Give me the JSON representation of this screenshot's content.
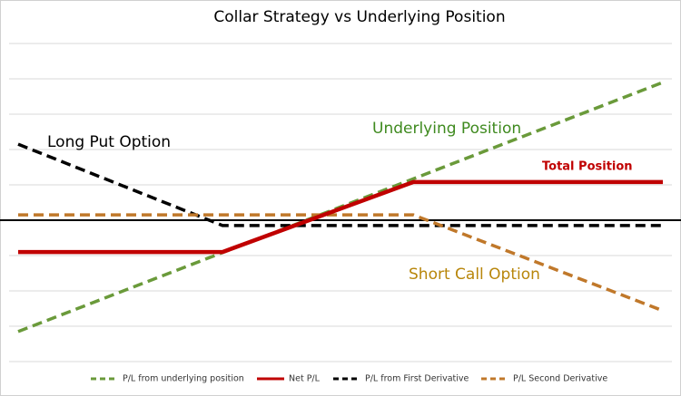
{
  "chart_data": {
    "type": "line",
    "title": "Collar Strategy vs Underlying Position",
    "xlim": [
      0,
      10
    ],
    "ylim": [
      -4,
      5
    ],
    "yticks": [
      -4,
      -3,
      -2,
      -1,
      0,
      1,
      2,
      3,
      4,
      5
    ],
    "grid": true,
    "legend": "bottom",
    "series": [
      {
        "name": "P/L from underlying position",
        "color": "#6a9a3a",
        "style": "dashed",
        "x": [
          0,
          10
        ],
        "values": [
          -3.15,
          3.9
        ]
      },
      {
        "name": "Net P/L",
        "color": "#c00000",
        "style": "solid",
        "x": [
          0,
          3.17,
          6.13,
          10
        ],
        "values": [
          -0.9,
          -0.9,
          1.08,
          1.08
        ]
      },
      {
        "name": "P/L from First Derivative",
        "color": "#000000",
        "style": "dashed",
        "x": [
          0,
          3.17,
          10
        ],
        "values": [
          2.15,
          -0.15,
          -0.15
        ]
      },
      {
        "name": "P/L Second Derivative",
        "color": "#c0782a",
        "style": "dashed",
        "x": [
          0,
          6.13,
          10
        ],
        "values": [
          0.15,
          0.15,
          -2.56
        ]
      }
    ],
    "annotations": [
      {
        "text": "Long Put Option",
        "color": "#000000"
      },
      {
        "text": "Underlying Position",
        "color": "#3f8a1f"
      },
      {
        "text": "Total Position",
        "color": "#c00000"
      },
      {
        "text": "Short Call Option",
        "color": "#b8860b"
      }
    ]
  }
}
